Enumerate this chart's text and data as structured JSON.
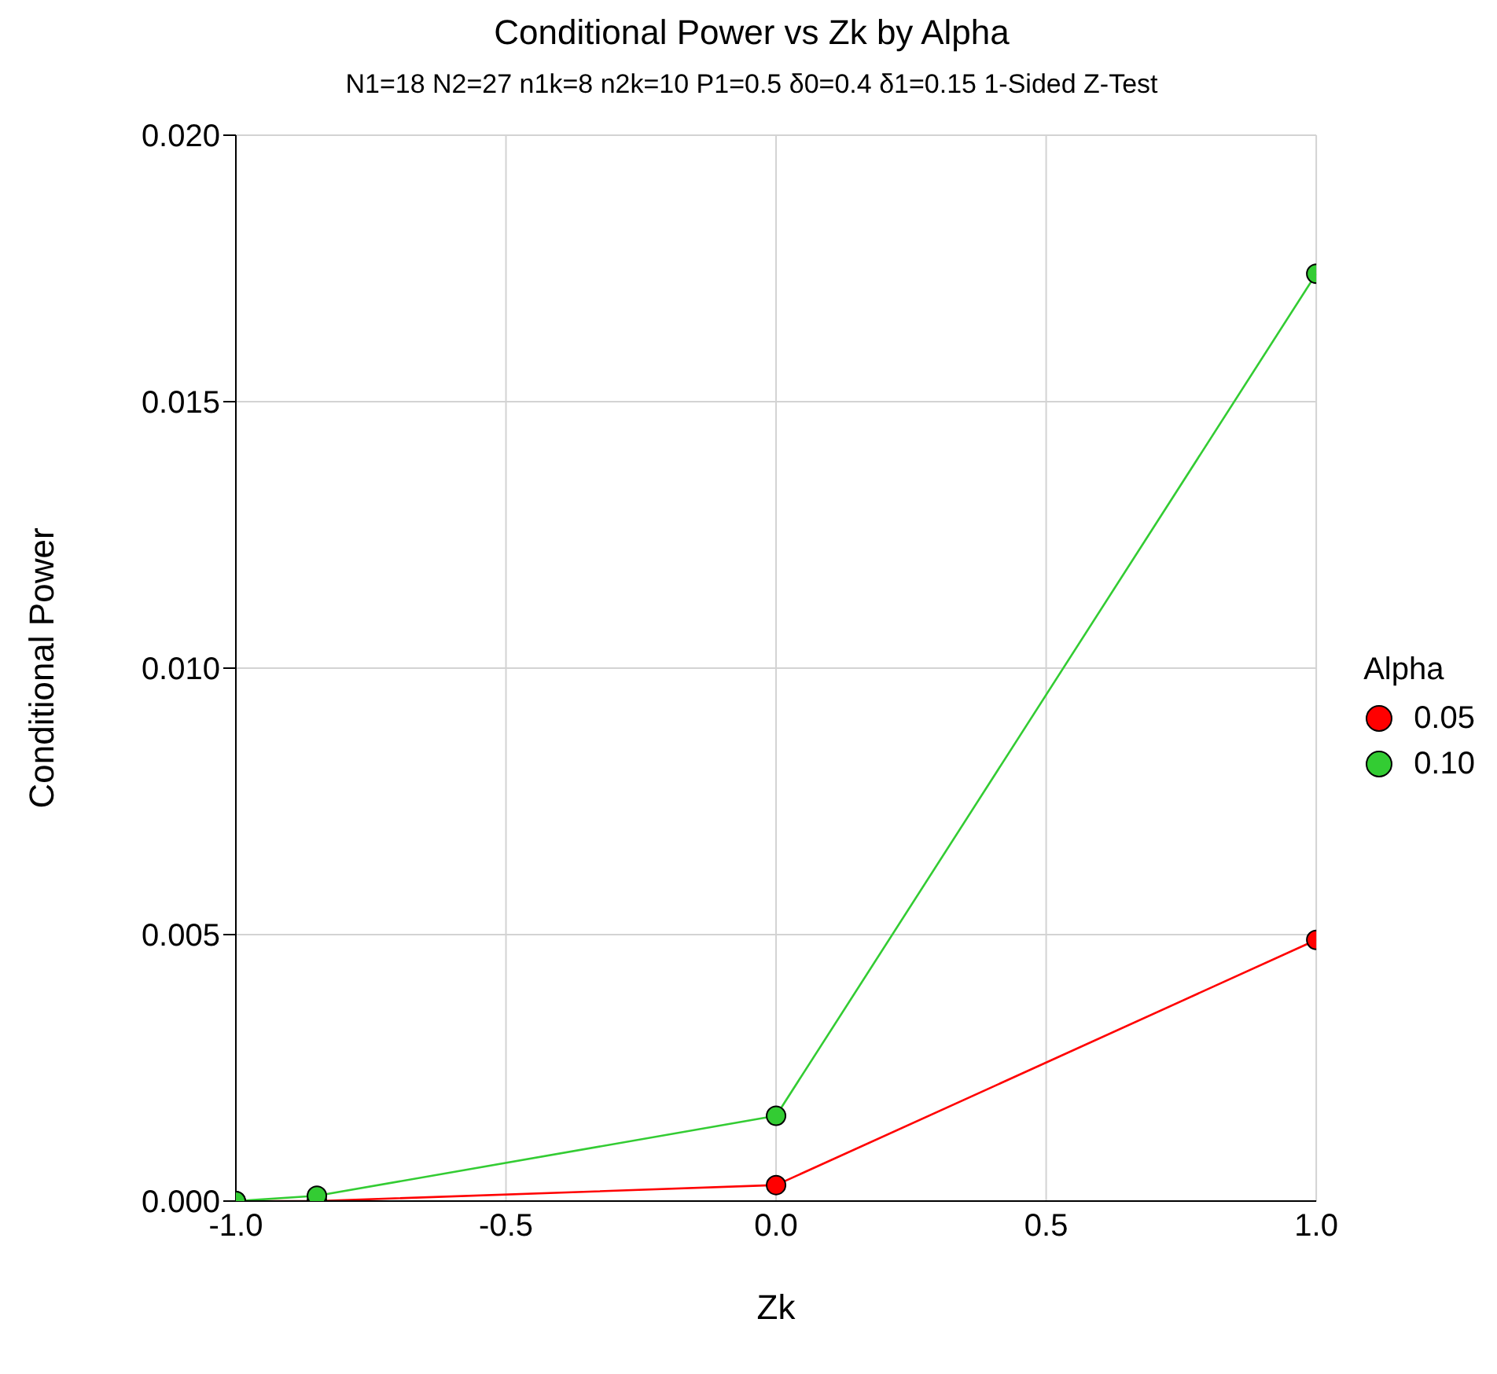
{
  "chart_data": {
    "type": "line",
    "title": "Conditional Power vs Zk by Alpha",
    "subtitle": "N1=18 N2=27 n1k=8 n2k=10 P1=0.5 δ0=0.4 δ1=0.15 1-Sided Z-Test",
    "xlabel": "Zk",
    "ylabel": "Conditional Power",
    "legend_title": "Alpha",
    "x": [
      -1,
      -0.85,
      0,
      1
    ],
    "series": [
      {
        "name": "0.05",
        "color": "#ff0000",
        "values": [
          0,
          0,
          0.0003,
          0.0049
        ]
      },
      {
        "name": "0.10",
        "color": "#33cc33",
        "values": [
          0,
          0.0001,
          0.0016,
          0.0174
        ]
      }
    ],
    "xlim": [
      -1,
      1
    ],
    "xticks": [
      {
        "value": -1,
        "label": "-1.0"
      },
      {
        "value": -0.5,
        "label": "-0.5"
      },
      {
        "value": 0,
        "label": "0.0"
      },
      {
        "value": 0.5,
        "label": "0.5"
      },
      {
        "value": 1,
        "label": "1.0"
      }
    ],
    "ylim": [
      0,
      0.02
    ],
    "yticks": [
      {
        "value": 0,
        "label": "0.000"
      },
      {
        "value": 0.005,
        "label": "0.005"
      },
      {
        "value": 0.01,
        "label": "0.010"
      },
      {
        "value": 0.015,
        "label": "0.015"
      },
      {
        "value": 0.02,
        "label": "0.020"
      }
    ],
    "grid": true,
    "legend": "right",
    "marker": "circle",
    "line_style": "solid"
  }
}
